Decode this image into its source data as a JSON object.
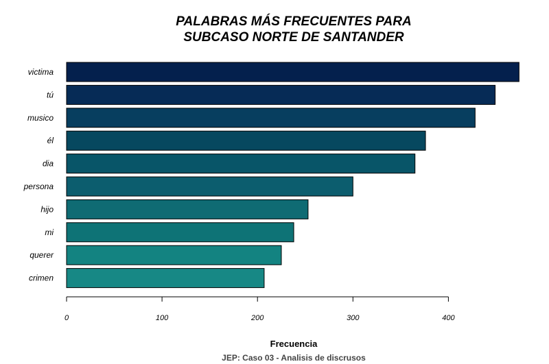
{
  "chart_data": {
    "type": "bar",
    "orientation": "horizontal",
    "title_lines": [
      "PALABRAS MÁS FRECUENTES PARA",
      "SUBCASO NORTE DE SANTANDER"
    ],
    "xlabel": "Frecuencia",
    "caption": "JEP: Caso 03 - Analisis de discrusos",
    "categories": [
      "victima",
      "tú",
      "musico",
      "él",
      "dia",
      "persona",
      "hijo",
      "mi",
      "querer",
      "crimen"
    ],
    "values": [
      474,
      449,
      428,
      376,
      365,
      300,
      253,
      238,
      225,
      207
    ],
    "colors": [
      "#04204d",
      "#062b56",
      "#073e5f",
      "#06485f",
      "#085568",
      "#0c5d6e",
      "#0f6b73",
      "#0e7376",
      "#138381",
      "#178885"
    ],
    "xlim": [
      0,
      480
    ],
    "xticks": [
      0,
      100,
      200,
      300,
      400
    ],
    "grid": false,
    "legend": false
  }
}
